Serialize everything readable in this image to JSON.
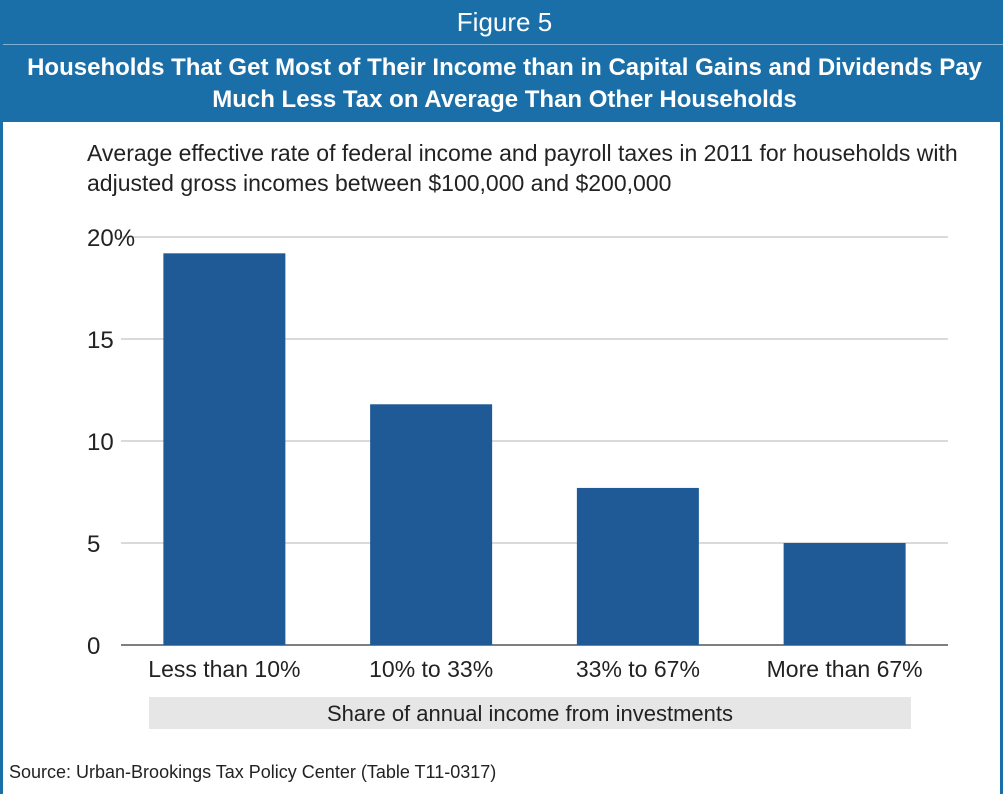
{
  "figure_label": "Figure 5",
  "figure_title": "Households That Get Most of Their Income than in Capital Gains and Dividends Pay Much Less Tax on Average Than Other Households",
  "source": "Source: Urban-Brookings Tax Policy Center (Table T11-0317)",
  "colors": {
    "header": "#1a6fa8",
    "bar": "#1f5a96",
    "axis_band": "#e6e6e6"
  },
  "chart_data": {
    "type": "bar",
    "title": "Average effective rate of federal income and payroll taxes in 2011 for households with adjusted gross incomes between $100,000 and $200,000",
    "categories": [
      "Less than 10%",
      "10% to 33%",
      "33% to 67%",
      "More than 67%"
    ],
    "values": [
      19.2,
      11.8,
      7.7,
      5.0
    ],
    "xlabel": "Share of annual income from investments",
    "ylabel": "",
    "ylim": [
      0,
      20
    ],
    "yticks": [
      0,
      5,
      10,
      15,
      20
    ],
    "ytick_labels": [
      "0",
      "5",
      "10",
      "15",
      "20%"
    ],
    "grid": true
  }
}
